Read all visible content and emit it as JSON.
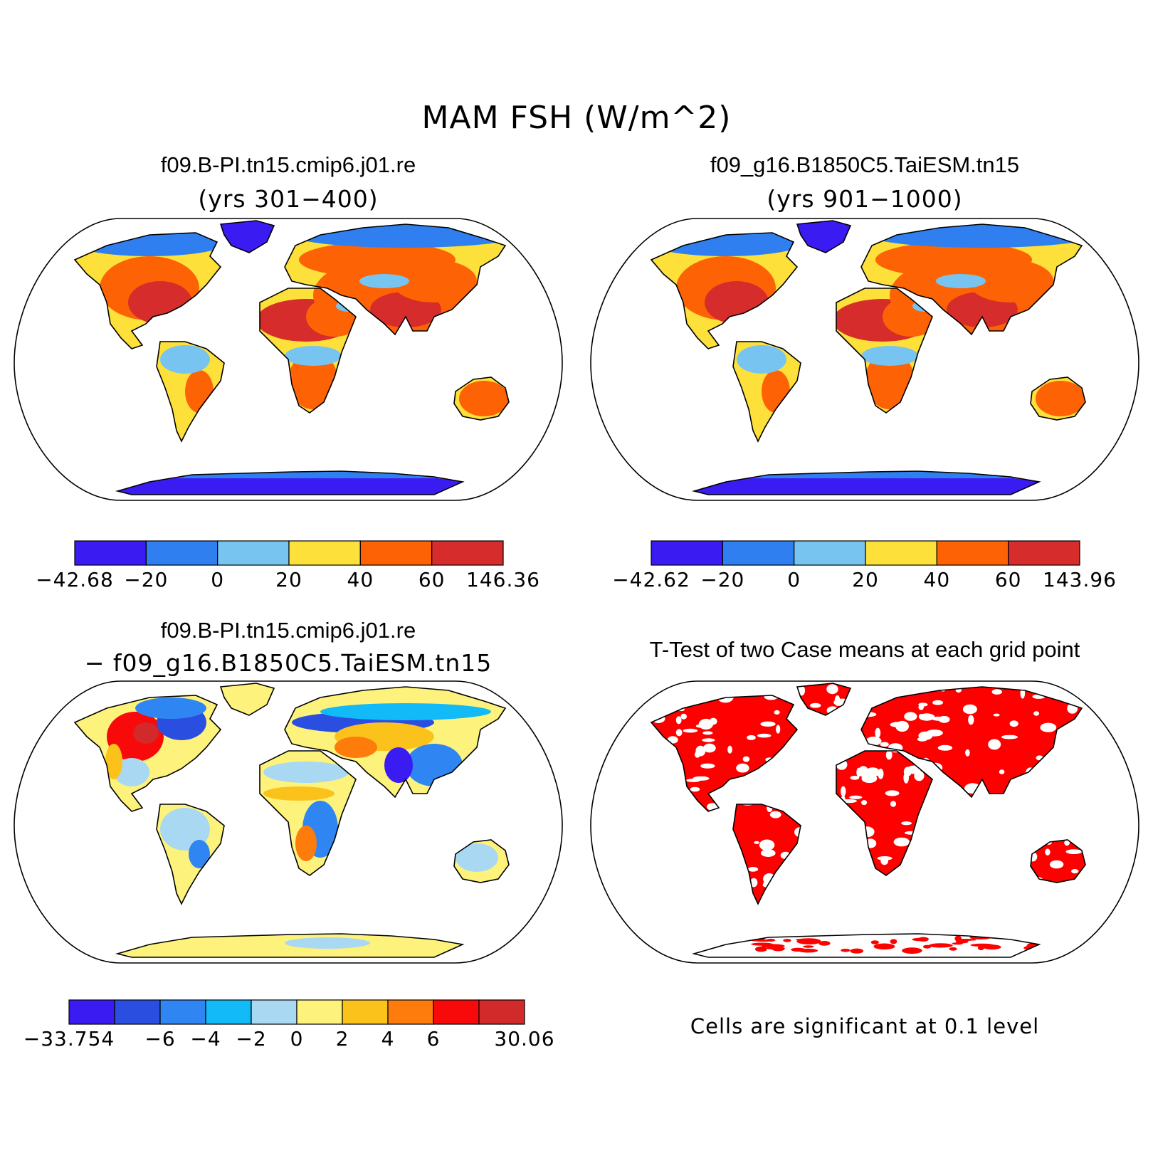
{
  "figure": {
    "title": "MAM FSH (W/m^2)"
  },
  "panels": [
    {
      "title": "f09.B-PI.tn15.cmip6.j01.re",
      "subtitle": "(yrs 301−400)",
      "colorbar": {
        "colors": [
          "#3a1cf2",
          "#2f7ff0",
          "#78c4f0",
          "#fde03a",
          "#fd6205",
          "#d62c2c"
        ],
        "labels": [
          "−42.68",
          "−20",
          "0",
          "20",
          "40",
          "60",
          "146.36"
        ]
      }
    },
    {
      "title": "f09_g16.B1850C5.TaiESM.tn15",
      "subtitle": "(yrs 901−1000)",
      "colorbar": {
        "colors": [
          "#3a1cf2",
          "#2f7ff0",
          "#78c4f0",
          "#fde03a",
          "#fd6205",
          "#d62c2c"
        ],
        "labels": [
          "−42.62",
          "−20",
          "0",
          "20",
          "40",
          "60",
          "143.96"
        ]
      }
    },
    {
      "title": "f09.B-PI.tn15.cmip6.j01.re",
      "subtitle": "− f09_g16.B1850C5.TaiESM.tn15",
      "colorbar": {
        "colors": [
          "#3a1cf2",
          "#2a4fe0",
          "#2f86f2",
          "#12baf7",
          "#a9d8f3",
          "#fdf27c",
          "#fcc21c",
          "#fd7c0c",
          "#f80a0a",
          "#d22a2a"
        ],
        "labels": [
          "−33.754",
          "",
          "−6",
          "−4",
          "−2",
          "0",
          "2",
          "4",
          "6",
          "",
          "30.06"
        ]
      }
    },
    {
      "title": "T-Test of two Case means at each grid point",
      "note": "Cells are significant at 0.1 level",
      "color": "#ff0000"
    }
  ]
}
